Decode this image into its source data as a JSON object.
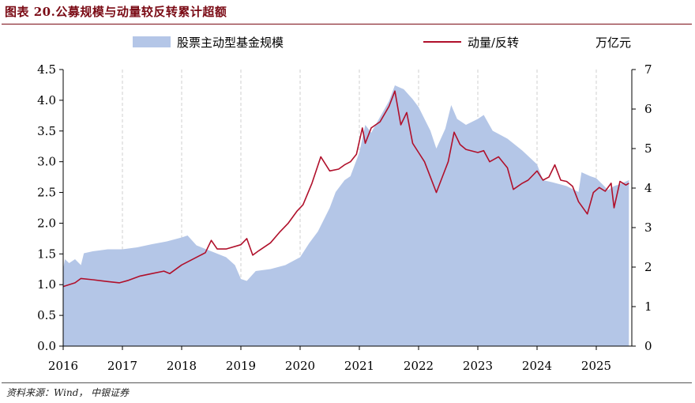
{
  "header": {
    "title": "图表 20.公募规模与动量较反转累计超额"
  },
  "footer": {
    "source": "资料来源：Wind， 中银证券"
  },
  "colors": {
    "area": "#b4c6e7",
    "line": "#b0102b",
    "title": "#7a0a14"
  },
  "chart_data": {
    "type": "area",
    "x_ticks": [
      "2016",
      "2017",
      "2018",
      "2019",
      "2020",
      "2021",
      "2022",
      "2023",
      "2024",
      "2025"
    ],
    "unit_label": "万亿元",
    "left_axis": {
      "min": 0,
      "max": 4.5,
      "ticks": [
        "0.0",
        "0.5",
        "1.0",
        "1.5",
        "2.0",
        "2.5",
        "3.0",
        "3.5",
        "4.0",
        "4.5"
      ]
    },
    "right_axis": {
      "min": 0,
      "max": 7,
      "ticks": [
        "0",
        "1",
        "2",
        "3",
        "4",
        "5",
        "6",
        "7"
      ]
    },
    "grid": "vertical dashed",
    "legend_position": "top",
    "series": [
      {
        "name": "股票主动型基金规模",
        "type": "area",
        "axis": "right",
        "points": [
          [
            2016.0,
            1.95
          ],
          [
            2016.03,
            2.2
          ],
          [
            2016.1,
            2.1
          ],
          [
            2016.2,
            2.2
          ],
          [
            2016.3,
            2.05
          ],
          [
            2016.35,
            2.35
          ],
          [
            2016.5,
            2.4
          ],
          [
            2016.75,
            2.45
          ],
          [
            2017.0,
            2.45
          ],
          [
            2017.25,
            2.5
          ],
          [
            2017.5,
            2.58
          ],
          [
            2017.75,
            2.65
          ],
          [
            2018.0,
            2.75
          ],
          [
            2018.1,
            2.8
          ],
          [
            2018.25,
            2.55
          ],
          [
            2018.5,
            2.4
          ],
          [
            2018.75,
            2.25
          ],
          [
            2018.9,
            2.05
          ],
          [
            2019.0,
            1.7
          ],
          [
            2019.1,
            1.65
          ],
          [
            2019.25,
            1.9
          ],
          [
            2019.5,
            1.95
          ],
          [
            2019.75,
            2.05
          ],
          [
            2020.0,
            2.25
          ],
          [
            2020.15,
            2.6
          ],
          [
            2020.3,
            2.9
          ],
          [
            2020.5,
            3.5
          ],
          [
            2020.6,
            3.9
          ],
          [
            2020.75,
            4.2
          ],
          [
            2020.85,
            4.3
          ],
          [
            2021.0,
            4.9
          ],
          [
            2021.1,
            5.6
          ],
          [
            2021.2,
            5.4
          ],
          [
            2021.35,
            5.8
          ],
          [
            2021.5,
            6.2
          ],
          [
            2021.6,
            6.6
          ],
          [
            2021.75,
            6.5
          ],
          [
            2021.9,
            6.25
          ],
          [
            2022.0,
            6.05
          ],
          [
            2022.2,
            5.45
          ],
          [
            2022.3,
            5.0
          ],
          [
            2022.45,
            5.5
          ],
          [
            2022.55,
            6.1
          ],
          [
            2022.65,
            5.75
          ],
          [
            2022.8,
            5.6
          ],
          [
            2023.0,
            5.75
          ],
          [
            2023.1,
            5.85
          ],
          [
            2023.25,
            5.45
          ],
          [
            2023.5,
            5.25
          ],
          [
            2023.75,
            4.95
          ],
          [
            2024.0,
            4.6
          ],
          [
            2024.1,
            4.2
          ],
          [
            2024.25,
            4.15
          ],
          [
            2024.5,
            4.05
          ],
          [
            2024.7,
            3.9
          ],
          [
            2024.75,
            4.4
          ],
          [
            2024.9,
            4.3
          ],
          [
            2025.0,
            4.25
          ],
          [
            2025.2,
            3.95
          ],
          [
            2025.3,
            4.05
          ],
          [
            2025.4,
            4.1
          ],
          [
            2025.55,
            4.2
          ]
        ]
      },
      {
        "name": "动量/反转",
        "type": "line",
        "axis": "left",
        "points": [
          [
            2016.0,
            0.97
          ],
          [
            2016.1,
            1.0
          ],
          [
            2016.2,
            1.03
          ],
          [
            2016.3,
            1.1
          ],
          [
            2016.5,
            1.08
          ],
          [
            2016.75,
            1.05
          ],
          [
            2016.95,
            1.03
          ],
          [
            2017.1,
            1.07
          ],
          [
            2017.3,
            1.14
          ],
          [
            2017.5,
            1.18
          ],
          [
            2017.7,
            1.22
          ],
          [
            2017.8,
            1.18
          ],
          [
            2018.0,
            1.32
          ],
          [
            2018.2,
            1.42
          ],
          [
            2018.4,
            1.52
          ],
          [
            2018.5,
            1.72
          ],
          [
            2018.6,
            1.58
          ],
          [
            2018.75,
            1.58
          ],
          [
            2019.0,
            1.65
          ],
          [
            2019.1,
            1.75
          ],
          [
            2019.2,
            1.48
          ],
          [
            2019.3,
            1.55
          ],
          [
            2019.5,
            1.68
          ],
          [
            2019.65,
            1.85
          ],
          [
            2019.8,
            2.0
          ],
          [
            2019.95,
            2.2
          ],
          [
            2020.05,
            2.3
          ],
          [
            2020.2,
            2.65
          ],
          [
            2020.35,
            3.08
          ],
          [
            2020.5,
            2.85
          ],
          [
            2020.65,
            2.88
          ],
          [
            2020.75,
            2.95
          ],
          [
            2020.85,
            3.0
          ],
          [
            2020.95,
            3.12
          ],
          [
            2021.05,
            3.55
          ],
          [
            2021.1,
            3.3
          ],
          [
            2021.2,
            3.55
          ],
          [
            2021.35,
            3.65
          ],
          [
            2021.5,
            3.9
          ],
          [
            2021.6,
            4.15
          ],
          [
            2021.7,
            3.6
          ],
          [
            2021.8,
            3.8
          ],
          [
            2021.9,
            3.3
          ],
          [
            2022.0,
            3.15
          ],
          [
            2022.1,
            3.0
          ],
          [
            2022.2,
            2.75
          ],
          [
            2022.3,
            2.5
          ],
          [
            2022.4,
            2.75
          ],
          [
            2022.5,
            3.0
          ],
          [
            2022.6,
            3.48
          ],
          [
            2022.7,
            3.28
          ],
          [
            2022.8,
            3.2
          ],
          [
            2023.0,
            3.15
          ],
          [
            2023.1,
            3.18
          ],
          [
            2023.2,
            3.0
          ],
          [
            2023.35,
            3.08
          ],
          [
            2023.5,
            2.9
          ],
          [
            2023.6,
            2.55
          ],
          [
            2023.75,
            2.65
          ],
          [
            2023.85,
            2.7
          ],
          [
            2024.0,
            2.85
          ],
          [
            2024.1,
            2.7
          ],
          [
            2024.2,
            2.75
          ],
          [
            2024.3,
            2.95
          ],
          [
            2024.4,
            2.7
          ],
          [
            2024.5,
            2.68
          ],
          [
            2024.6,
            2.6
          ],
          [
            2024.7,
            2.35
          ],
          [
            2024.85,
            2.15
          ],
          [
            2024.95,
            2.5
          ],
          [
            2025.05,
            2.58
          ],
          [
            2025.15,
            2.52
          ],
          [
            2025.25,
            2.65
          ],
          [
            2025.3,
            2.25
          ],
          [
            2025.4,
            2.68
          ],
          [
            2025.5,
            2.62
          ],
          [
            2025.55,
            2.65
          ]
        ]
      }
    ]
  }
}
